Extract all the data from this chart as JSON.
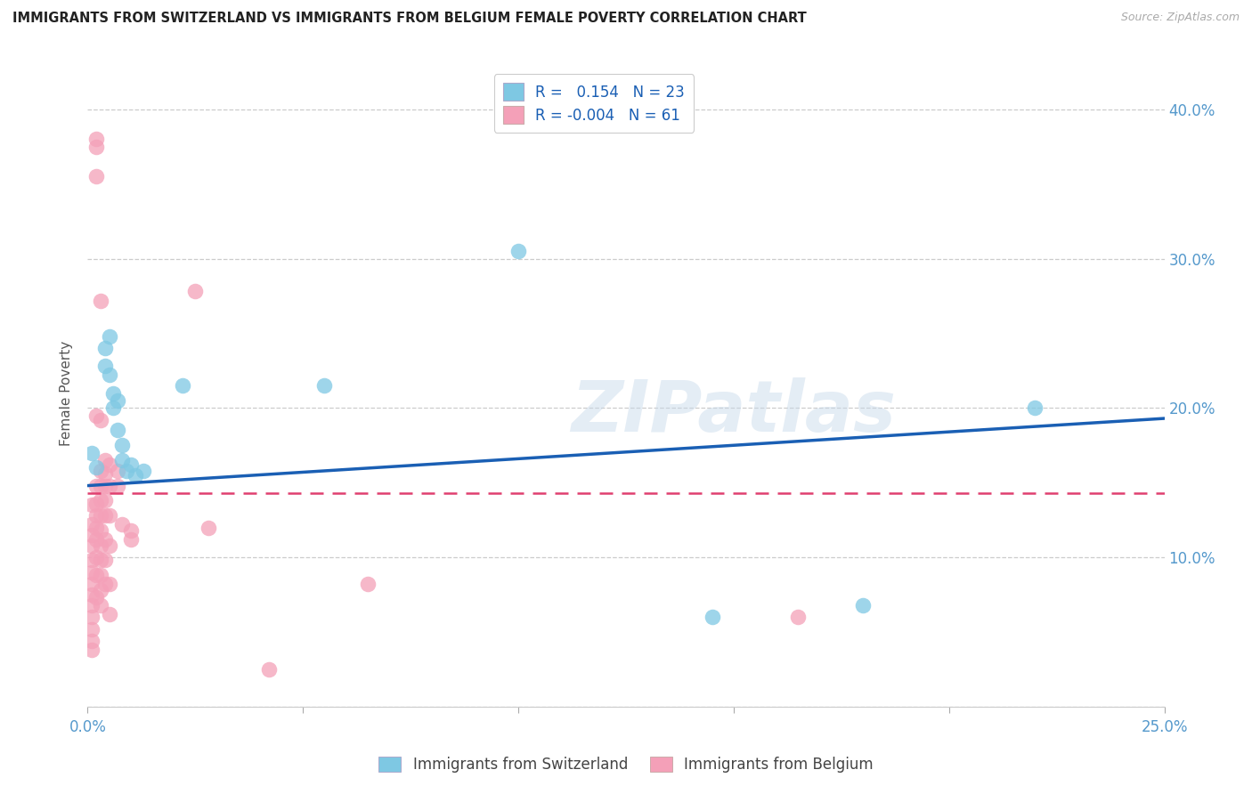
{
  "title": "IMMIGRANTS FROM SWITZERLAND VS IMMIGRANTS FROM BELGIUM FEMALE POVERTY CORRELATION CHART",
  "source": "Source: ZipAtlas.com",
  "ylabel": "Female Poverty",
  "xmin": 0.0,
  "xmax": 0.25,
  "ymin": 0.0,
  "ymax": 0.42,
  "ytick_vals": [
    0.0,
    0.1,
    0.2,
    0.3,
    0.4
  ],
  "ytick_labels": [
    "",
    "10.0%",
    "20.0%",
    "30.0%",
    "40.0%"
  ],
  "xtick_vals": [
    0.0,
    0.05,
    0.1,
    0.15,
    0.2,
    0.25
  ],
  "xtick_labels": [
    "0.0%",
    "",
    "",
    "",
    "",
    "25.0%"
  ],
  "watermark": "ZIPatlas",
  "swiss_color": "#7ec8e3",
  "belgium_color": "#f4a0b8",
  "swiss_line_color": "#1a5fb4",
  "belgium_line_color": "#e04070",
  "swiss_line_x0": 0.0,
  "swiss_line_y0": 0.148,
  "swiss_line_x1": 0.25,
  "swiss_line_y1": 0.193,
  "belg_line_x0": 0.0,
  "belg_line_y0": 0.143,
  "belg_line_x1": 0.25,
  "belg_line_y1": 0.143,
  "swiss_points": [
    [
      0.001,
      0.17
    ],
    [
      0.002,
      0.16
    ],
    [
      0.004,
      0.24
    ],
    [
      0.004,
      0.228
    ],
    [
      0.005,
      0.248
    ],
    [
      0.005,
      0.222
    ],
    [
      0.006,
      0.21
    ],
    [
      0.006,
      0.2
    ],
    [
      0.007,
      0.205
    ],
    [
      0.007,
      0.185
    ],
    [
      0.008,
      0.175
    ],
    [
      0.008,
      0.165
    ],
    [
      0.009,
      0.158
    ],
    [
      0.01,
      0.162
    ],
    [
      0.011,
      0.155
    ],
    [
      0.013,
      0.158
    ],
    [
      0.022,
      0.215
    ],
    [
      0.055,
      0.215
    ],
    [
      0.1,
      0.305
    ],
    [
      0.145,
      0.06
    ],
    [
      0.18,
      0.068
    ],
    [
      0.22,
      0.2
    ]
  ],
  "belgium_points": [
    [
      0.001,
      0.135
    ],
    [
      0.001,
      0.122
    ],
    [
      0.001,
      0.115
    ],
    [
      0.001,
      0.108
    ],
    [
      0.001,
      0.098
    ],
    [
      0.001,
      0.09
    ],
    [
      0.001,
      0.082
    ],
    [
      0.001,
      0.075
    ],
    [
      0.001,
      0.068
    ],
    [
      0.001,
      0.06
    ],
    [
      0.001,
      0.052
    ],
    [
      0.001,
      0.044
    ],
    [
      0.001,
      0.038
    ],
    [
      0.002,
      0.38
    ],
    [
      0.002,
      0.375
    ],
    [
      0.002,
      0.355
    ],
    [
      0.002,
      0.195
    ],
    [
      0.002,
      0.148
    ],
    [
      0.002,
      0.136
    ],
    [
      0.002,
      0.128
    ],
    [
      0.002,
      0.12
    ],
    [
      0.002,
      0.112
    ],
    [
      0.002,
      0.1
    ],
    [
      0.002,
      0.088
    ],
    [
      0.002,
      0.073
    ],
    [
      0.003,
      0.272
    ],
    [
      0.003,
      0.192
    ],
    [
      0.003,
      0.158
    ],
    [
      0.003,
      0.148
    ],
    [
      0.003,
      0.138
    ],
    [
      0.003,
      0.128
    ],
    [
      0.003,
      0.118
    ],
    [
      0.003,
      0.108
    ],
    [
      0.003,
      0.098
    ],
    [
      0.003,
      0.088
    ],
    [
      0.003,
      0.078
    ],
    [
      0.003,
      0.068
    ],
    [
      0.004,
      0.165
    ],
    [
      0.004,
      0.156
    ],
    [
      0.004,
      0.148
    ],
    [
      0.004,
      0.138
    ],
    [
      0.004,
      0.128
    ],
    [
      0.004,
      0.112
    ],
    [
      0.004,
      0.098
    ],
    [
      0.004,
      0.082
    ],
    [
      0.005,
      0.162
    ],
    [
      0.005,
      0.148
    ],
    [
      0.005,
      0.128
    ],
    [
      0.005,
      0.108
    ],
    [
      0.005,
      0.082
    ],
    [
      0.005,
      0.062
    ],
    [
      0.007,
      0.158
    ],
    [
      0.007,
      0.148
    ],
    [
      0.008,
      0.122
    ],
    [
      0.01,
      0.118
    ],
    [
      0.01,
      0.112
    ],
    [
      0.025,
      0.278
    ],
    [
      0.028,
      0.12
    ],
    [
      0.065,
      0.082
    ],
    [
      0.165,
      0.06
    ],
    [
      0.042,
      0.025
    ]
  ]
}
